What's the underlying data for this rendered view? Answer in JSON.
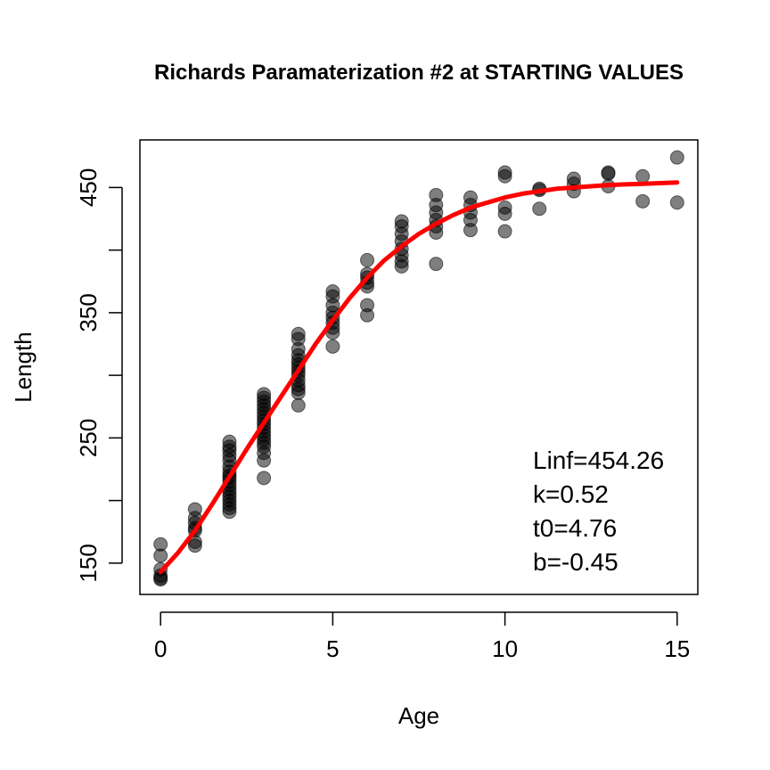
{
  "chart_data": {
    "type": "scatter",
    "title": "Richards Paramaterization #2 at STARTING VALUES",
    "xlabel": "Age",
    "ylabel": "Length",
    "xlim": [
      -0.6,
      15.6
    ],
    "ylim": [
      125,
      488
    ],
    "xticks": [
      0,
      5,
      10,
      15
    ],
    "yticks": [
      150,
      200,
      250,
      300,
      350,
      400,
      450
    ],
    "ytick_labels": [
      "150",
      "",
      "250",
      "",
      "350",
      "",
      "450"
    ],
    "grid": false,
    "point_color": "#000000",
    "point_opacity": 0.5,
    "series": [
      {
        "type": "scatter",
        "points": [
          [
            0,
            165
          ],
          [
            0,
            156
          ],
          [
            0,
            145
          ],
          [
            0,
            140
          ],
          [
            0,
            137
          ],
          [
            0,
            138
          ],
          [
            1,
            193
          ],
          [
            1,
            186
          ],
          [
            1,
            182
          ],
          [
            1,
            178
          ],
          [
            1,
            176
          ],
          [
            1,
            167
          ],
          [
            1,
            164
          ],
          [
            2,
            247
          ],
          [
            2,
            243
          ],
          [
            2,
            240
          ],
          [
            2,
            236
          ],
          [
            2,
            232
          ],
          [
            2,
            227
          ],
          [
            2,
            223
          ],
          [
            2,
            220
          ],
          [
            2,
            218
          ],
          [
            2,
            215
          ],
          [
            2,
            212
          ],
          [
            2,
            209
          ],
          [
            2,
            206
          ],
          [
            2,
            203
          ],
          [
            2,
            200
          ],
          [
            2,
            197
          ],
          [
            2,
            194
          ],
          [
            2,
            191
          ],
          [
            3,
            285
          ],
          [
            3,
            282
          ],
          [
            3,
            279
          ],
          [
            3,
            276
          ],
          [
            3,
            273
          ],
          [
            3,
            270
          ],
          [
            3,
            267
          ],
          [
            3,
            264
          ],
          [
            3,
            261
          ],
          [
            3,
            258
          ],
          [
            3,
            255
          ],
          [
            3,
            252
          ],
          [
            3,
            249
          ],
          [
            3,
            246
          ],
          [
            3,
            243
          ],
          [
            3,
            238
          ],
          [
            3,
            232
          ],
          [
            3,
            218
          ],
          [
            4,
            333
          ],
          [
            4,
            329
          ],
          [
            4,
            321
          ],
          [
            4,
            316
          ],
          [
            4,
            312
          ],
          [
            4,
            309
          ],
          [
            4,
            306
          ],
          [
            4,
            303
          ],
          [
            4,
            300
          ],
          [
            4,
            296
          ],
          [
            4,
            292
          ],
          [
            4,
            289
          ],
          [
            4,
            286
          ],
          [
            4,
            276
          ],
          [
            5,
            367
          ],
          [
            5,
            363
          ],
          [
            5,
            356
          ],
          [
            5,
            350
          ],
          [
            5,
            346
          ],
          [
            5,
            342
          ],
          [
            5,
            338
          ],
          [
            5,
            334
          ],
          [
            5,
            323
          ],
          [
            6,
            392
          ],
          [
            6,
            381
          ],
          [
            6,
            378
          ],
          [
            6,
            374
          ],
          [
            6,
            371
          ],
          [
            6,
            356
          ],
          [
            6,
            348
          ],
          [
            7,
            423
          ],
          [
            7,
            419
          ],
          [
            7,
            413
          ],
          [
            7,
            407
          ],
          [
            7,
            401
          ],
          [
            7,
            396
          ],
          [
            7,
            391
          ],
          [
            7,
            387
          ],
          [
            8,
            444
          ],
          [
            8,
            436
          ],
          [
            8,
            430
          ],
          [
            8,
            424
          ],
          [
            8,
            419
          ],
          [
            8,
            414
          ],
          [
            8,
            389
          ],
          [
            9,
            442
          ],
          [
            9,
            436
          ],
          [
            9,
            430
          ],
          [
            9,
            424
          ],
          [
            9,
            416
          ],
          [
            10,
            462
          ],
          [
            10,
            459
          ],
          [
            10,
            434
          ],
          [
            10,
            429
          ],
          [
            10,
            415
          ],
          [
            11,
            449
          ],
          [
            11,
            448
          ],
          [
            11,
            433
          ],
          [
            12,
            457
          ],
          [
            12,
            453
          ],
          [
            12,
            447
          ],
          [
            13,
            462
          ],
          [
            13,
            461
          ],
          [
            13,
            451
          ],
          [
            14,
            459
          ],
          [
            14,
            439
          ],
          [
            15,
            474
          ],
          [
            15,
            438
          ]
        ]
      },
      {
        "name": "",
        "type": "line",
        "color": "#ff0000",
        "x": [
          0,
          0.5,
          1,
          1.5,
          2,
          2.5,
          3,
          3.5,
          4,
          4.5,
          5,
          5.5,
          6,
          6.5,
          7,
          7.5,
          8,
          8.5,
          9,
          9.5,
          10,
          10.5,
          11,
          11.5,
          12,
          12.5,
          13,
          13.5,
          14,
          14.5,
          15
        ],
        "y": [
          143,
          158,
          176,
          197,
          219,
          241,
          262,
          283,
          304,
          325,
          344,
          362,
          378,
          392,
          403,
          413,
          421,
          428,
          434,
          438,
          442,
          445,
          447,
          449,
          450,
          451,
          452,
          452.5,
          453,
          453.5,
          454
        ]
      }
    ],
    "annotations": [
      "Linf=454.26",
      "k=0.52",
      "t0=4.76",
      "b=-0.45"
    ]
  }
}
